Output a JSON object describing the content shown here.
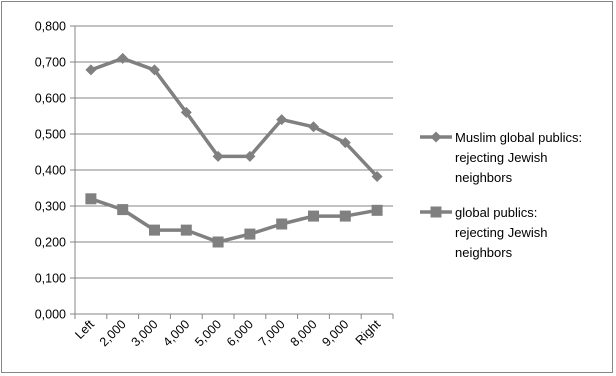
{
  "chart_data": {
    "type": "line",
    "title": "",
    "xlabel": "",
    "ylabel": "",
    "categories": [
      "Left",
      "2,000",
      "3,000",
      "4,000",
      "5,000",
      "6,000",
      "7,000",
      "8,000",
      "9,000",
      "Right"
    ],
    "ylim": [
      0,
      0.8
    ],
    "yticks": [
      "0,000",
      "0,100",
      "0,200",
      "0,300",
      "0,400",
      "0,500",
      "0,600",
      "0,700",
      "0,800"
    ],
    "grid": true,
    "legend_position": "right",
    "series": [
      {
        "name": "Muslim global publics: rejecting Jewish neighbors",
        "legend_lines": [
          "Muslim global publics:",
          "rejecting Jewish",
          "neighbors"
        ],
        "marker": "diamond",
        "color": "#808080",
        "values": [
          0.678,
          0.71,
          0.678,
          0.56,
          0.438,
          0.438,
          0.54,
          0.52,
          0.476,
          0.382
        ]
      },
      {
        "name": "global publics: rejecting Jewish neighbors",
        "legend_lines": [
          "global publics:",
          "rejecting Jewish",
          "neighbors"
        ],
        "marker": "square",
        "color": "#808080",
        "values": [
          0.32,
          0.29,
          0.233,
          0.233,
          0.2,
          0.222,
          0.25,
          0.272,
          0.272,
          0.288
        ]
      }
    ]
  }
}
